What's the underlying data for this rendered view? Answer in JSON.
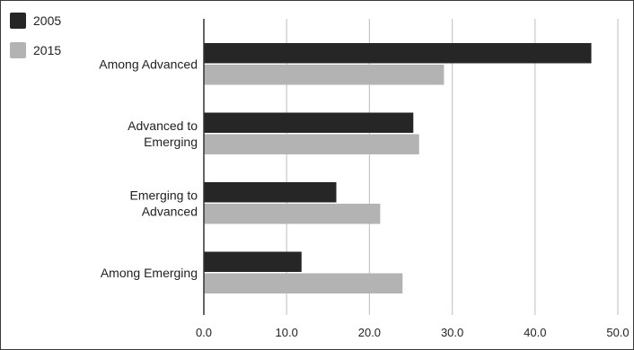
{
  "chart_data": {
    "type": "bar",
    "orientation": "horizontal",
    "categories": [
      [
        "Among Advanced"
      ],
      [
        "Advanced to",
        "Emerging"
      ],
      [
        "Emerging to",
        "Advanced"
      ],
      [
        "Among Emerging"
      ]
    ],
    "series": [
      {
        "name": "2005",
        "color": "#262626",
        "values": [
          46.8,
          25.3,
          16.0,
          11.8
        ]
      },
      {
        "name": "2015",
        "color": "#b3b3b3",
        "values": [
          29.0,
          26.0,
          21.3,
          24.0
        ]
      }
    ],
    "xlim": [
      0,
      50
    ],
    "xticks": [
      "0.0",
      "10.0",
      "20.0",
      "30.0",
      "40.0",
      "50.0"
    ],
    "grid": true,
    "legend_position": "top-left"
  }
}
